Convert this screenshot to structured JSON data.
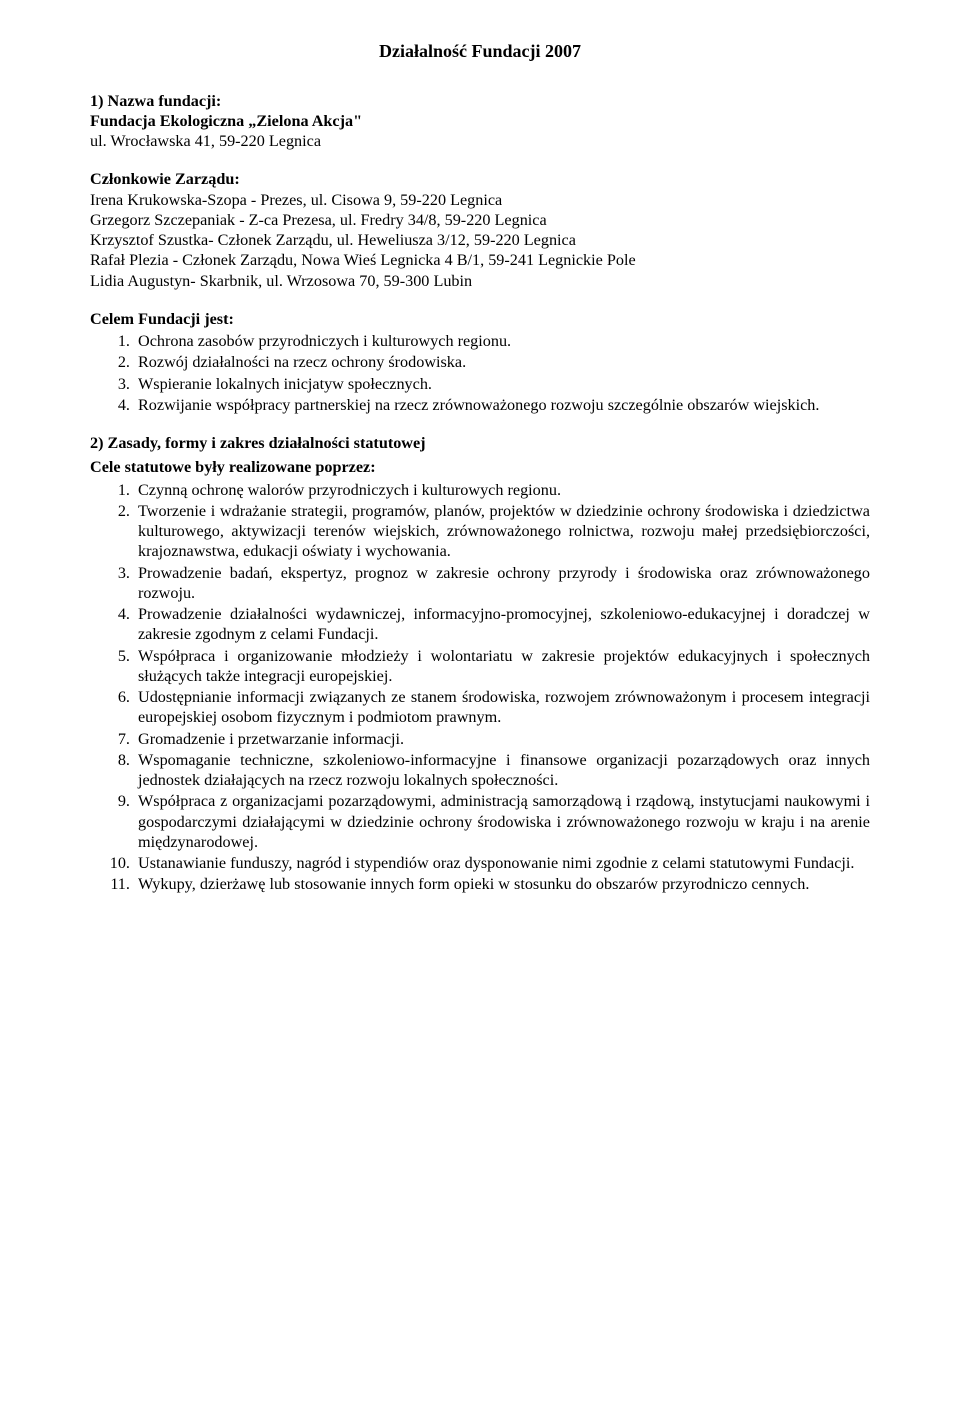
{
  "title": "Działalność Fundacji 2007",
  "intro": {
    "s1_label": "1) Nazwa fundacji:",
    "org_name": "Fundacja Ekologiczna „Zielona Akcja\"",
    "addr1": "ul. Wrocławska 41, 59-220 Legnica",
    "board_label": "Członkowie Zarządu:",
    "m1": "Irena Krukowska-Szopa - Prezes, ul. Cisowa 9, 59-220 Legnica",
    "m2": "Grzegorz Szczepaniak - Z-ca Prezesa, ul. Fredry 34/8, 59-220 Legnica",
    "m3": "Krzysztof Szustka- Członek Zarządu, ul. Heweliusza 3/12, 59-220 Legnica",
    "m4": "Rafał Plezia - Członek Zarządu, Nowa Wieś Legnicka 4 B/1, 59-241 Legnickie Pole",
    "m5": "Lidia Augustyn- Skarbnik, ul. Wrzosowa 70, 59-300 Lubin"
  },
  "cel": {
    "label": "Celem Fundacji jest:",
    "items": [
      "Ochrona zasobów przyrodniczych i kulturowych regionu.",
      "Rozwój działalności na rzecz ochrony środowiska.",
      "Wspieranie lokalnych inicjatyw społecznych.",
      "Rozwijanie współpracy partnerskiej na rzecz zrównoważonego rozwoju szczególnie obszarów wiejskich."
    ]
  },
  "s2_label": "2) Zasady, formy i zakres działalności statutowej",
  "cele_stat": {
    "label": "Cele statutowe były realizowane poprzez:",
    "items": [
      "Czynną ochronę walorów przyrodniczych i kulturowych regionu.",
      "Tworzenie i wdrażanie strategii, programów, planów, projektów w dziedzinie ochrony środowiska i dziedzictwa kulturowego, aktywizacji terenów wiejskich, zrównoważonego rolnictwa, rozwoju małej przedsiębiorczości, krajoznawstwa, edukacji oświaty i wychowania.",
      "Prowadzenie badań, ekspertyz, prognoz w zakresie ochrony przyrody i środowiska oraz zrównoważonego rozwoju.",
      "Prowadzenie działalności wydawniczej, informacyjno-promocyjnej, szkoleniowo-edukacyjnej i doradczej w zakresie zgodnym z celami Fundacji.",
      "Współpraca i organizowanie młodzieży i wolontariatu w zakresie projektów edukacyjnych i społecznych służących także integracji europejskiej.",
      "Udostępnianie informacji związanych ze stanem środowiska, rozwojem zrównoważonym i procesem integracji europejskiej osobom fizycznym i podmiotom prawnym.",
      "Gromadzenie i przetwarzanie informacji.",
      "Wspomaganie techniczne, szkoleniowo-informacyjne i finansowe organizacji pozarządowych oraz innych jednostek działających na rzecz rozwoju lokalnych społeczności.",
      "Współpraca z organizacjami pozarządowymi, administracją samorządową i rządową, instytucjami naukowymi i gospodarczymi działającymi w dziedzinie ochrony środowiska i zrównoważonego rozwoju w kraju i na arenie międzynarodowej.",
      "Ustanawianie funduszy, nagród i stypendiów oraz dysponowanie nimi zgodnie z celami statutowymi Fundacji.",
      "Wykupy, dzierżawę lub stosowanie innych form opieki w stosunku do obszarów przyrodniczo cennych."
    ]
  }
}
